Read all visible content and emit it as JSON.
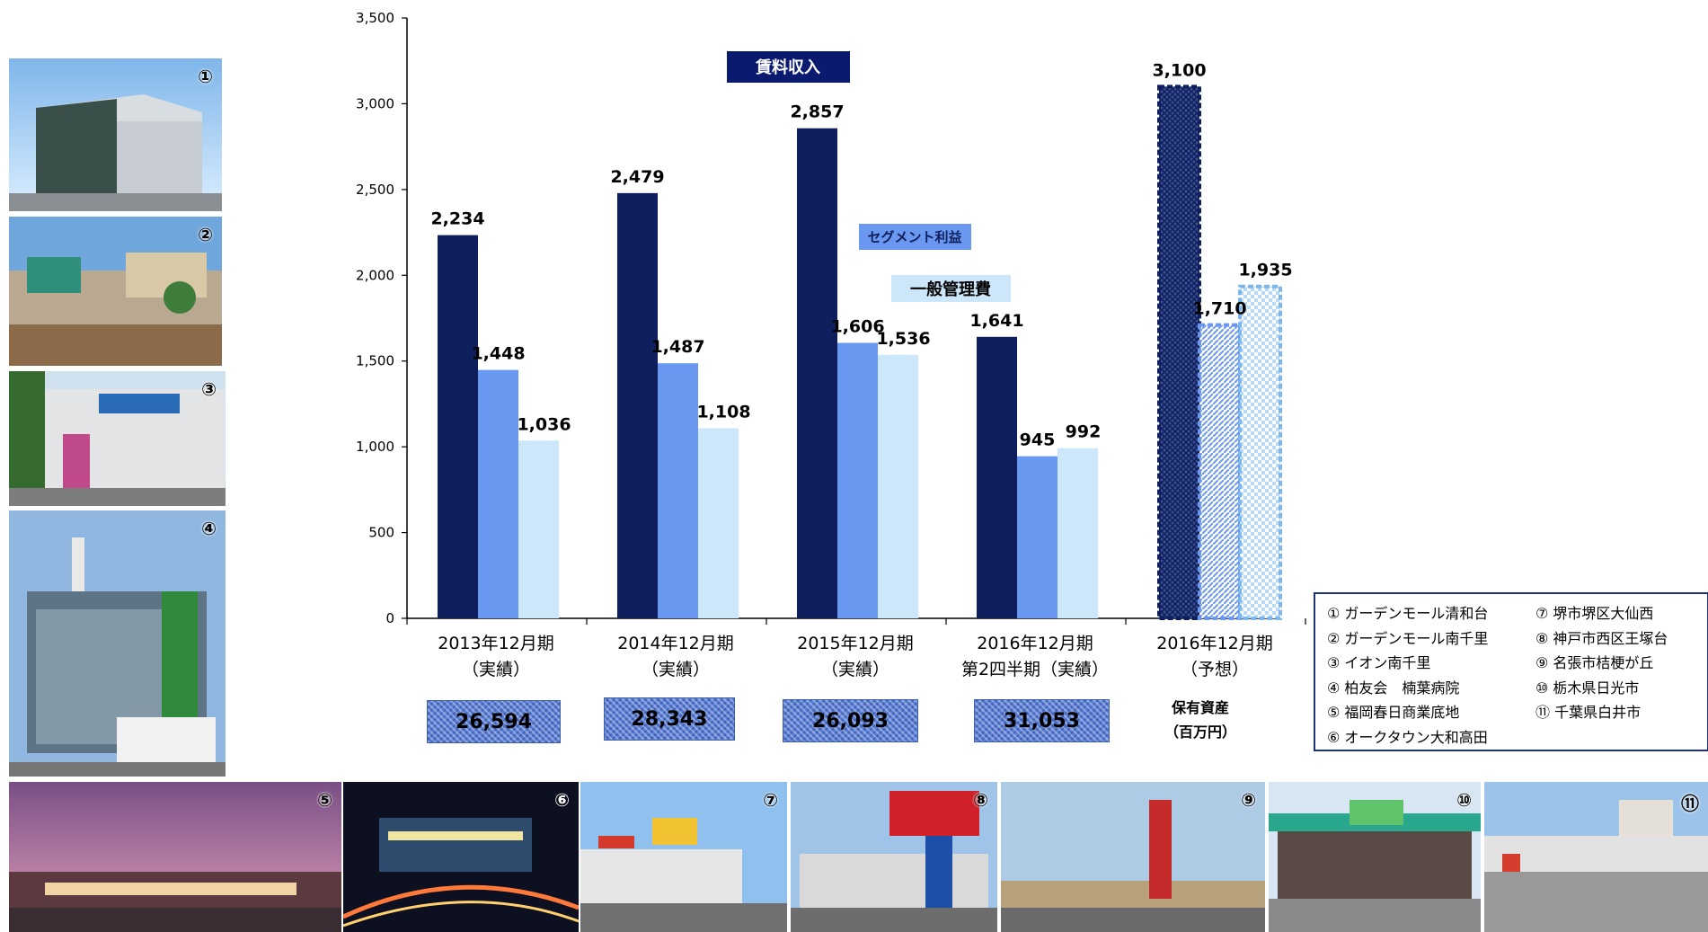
{
  "chart_data": {
    "type": "bar",
    "ylim": [
      0,
      3500
    ],
    "yticks": [
      "0",
      "500",
      "1,000",
      "1,500",
      "2,000",
      "2,500",
      "3,000",
      "3,500"
    ],
    "categories": [
      {
        "line1": "2013年12月期",
        "line2": "（実績）"
      },
      {
        "line1": "2014年12月期",
        "line2": "（実績）"
      },
      {
        "line1": "2015年12月期",
        "line2": "（実績）"
      },
      {
        "line1": "2016年12月期",
        "line2": "第2四半期（実績）"
      },
      {
        "line1": "2016年12月期",
        "line2": "（予想）"
      }
    ],
    "series": [
      {
        "name": "賃料収入",
        "color": "#0f1f5e",
        "values": [
          2234,
          2479,
          2857,
          1641,
          3100
        ],
        "labels": [
          "2,234",
          "2,479",
          "2,857",
          "1,641",
          "3,100"
        ]
      },
      {
        "name": "セグメント利益",
        "color": "#6a98f0",
        "values": [
          1448,
          1487,
          1606,
          945,
          1710
        ],
        "labels": [
          "1,448",
          "1,487",
          "1,606",
          "945",
          "1,710"
        ]
      },
      {
        "name": "一般管理費",
        "color": "#cce6fa",
        "values": [
          1036,
          1108,
          1536,
          992,
          1935
        ],
        "labels": [
          "1,036",
          "1,108",
          "1,536",
          "992",
          "1,935"
        ]
      }
    ],
    "forecast_category_index": 4
  },
  "assets": {
    "label_line1": "保有資産",
    "label_line2": "（百万円）",
    "values": [
      "26,594",
      "28,343",
      "26,093",
      "31,053"
    ]
  },
  "legend": {
    "col1": [
      "① ガーデンモール清和台",
      "② ガーデンモール南千里",
      "③ イオン南千里",
      "④ 柏友会　楠葉病院",
      "⑤ 福岡春日商業底地",
      "⑥ オークタウン大和高田"
    ],
    "col2": [
      "⑦ 堺市堺区大仙西",
      "⑧ 神戸市西区王塚台",
      "⑨ 名張市桔梗が丘",
      "⑩ 栃木県日光市",
      "⑪ 千葉県白井市"
    ]
  },
  "photos": [
    {
      "num": "①",
      "icon": "building-photo"
    },
    {
      "num": "②",
      "icon": "building-photo"
    },
    {
      "num": "③",
      "icon": "building-photo"
    },
    {
      "num": "④",
      "icon": "building-photo"
    },
    {
      "num": "⑤",
      "icon": "building-photo"
    },
    {
      "num": "⑥",
      "icon": "building-photo"
    },
    {
      "num": "⑦",
      "icon": "building-photo"
    },
    {
      "num": "⑧",
      "icon": "building-photo"
    },
    {
      "num": "⑨",
      "icon": "building-photo"
    },
    {
      "num": "⑩",
      "icon": "building-photo"
    },
    {
      "num": "⑪",
      "icon": "building-photo"
    }
  ]
}
